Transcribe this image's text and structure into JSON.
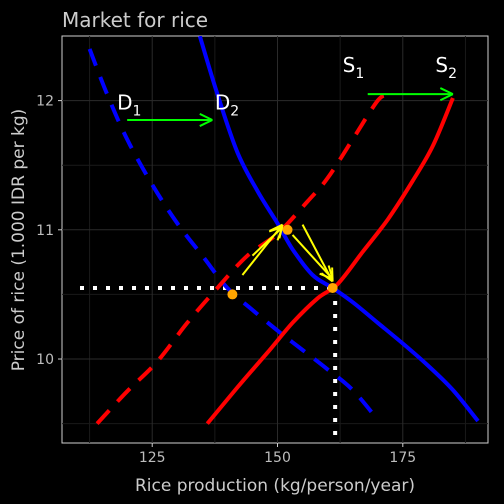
{
  "chart_data": {
    "type": "line",
    "title": "Market for rice",
    "xlabel": "Rice production (kg/person/year)",
    "ylabel": "Price of rice (1.000 IDR per kg)",
    "xlim": [
      107,
      192
    ],
    "ylim": [
      9.35,
      12.5
    ],
    "xticks": [
      125,
      150,
      175
    ],
    "yticks": [
      10,
      11,
      12
    ],
    "grid": true,
    "series": [
      {
        "name": "D1",
        "label_main": "D",
        "label_sub": "1",
        "color": "#0000ff",
        "dash": true,
        "label_at": [
          118,
          11.93
        ],
        "points": [
          [
            112.5,
            12.4
          ],
          [
            116,
            12.05
          ],
          [
            120,
            11.7
          ],
          [
            125,
            11.35
          ],
          [
            130,
            11.05
          ],
          [
            135,
            10.8
          ],
          [
            140,
            10.55
          ],
          [
            145,
            10.38
          ],
          [
            150,
            10.22
          ],
          [
            155,
            10.07
          ],
          [
            160,
            9.92
          ],
          [
            165,
            9.76
          ],
          [
            170,
            9.53
          ]
        ]
      },
      {
        "name": "D2",
        "label_main": "D",
        "label_sub": "2",
        "color": "#0000ff",
        "dash": false,
        "label_at": [
          137.5,
          11.93
        ],
        "points": [
          [
            134.5,
            12.5
          ],
          [
            138,
            12.05
          ],
          [
            142,
            11.6
          ],
          [
            146,
            11.3
          ],
          [
            150,
            11.05
          ],
          [
            153,
            10.85
          ],
          [
            157,
            10.65
          ],
          [
            161,
            10.55
          ],
          [
            165,
            10.44
          ],
          [
            170,
            10.28
          ],
          [
            175,
            10.12
          ],
          [
            180,
            9.95
          ],
          [
            185,
            9.76
          ],
          [
            190,
            9.52
          ]
        ]
      },
      {
        "name": "S1",
        "label_main": "S",
        "label_sub": "1",
        "color": "#ff0000",
        "dash": true,
        "label_at": [
          163,
          12.22
        ],
        "points": [
          [
            114,
            9.5
          ],
          [
            120,
            9.75
          ],
          [
            126,
            9.98
          ],
          [
            132,
            10.28
          ],
          [
            138,
            10.55
          ],
          [
            144,
            10.8
          ],
          [
            150,
            10.97
          ],
          [
            156,
            11.22
          ],
          [
            160,
            11.4
          ],
          [
            165,
            11.7
          ],
          [
            170,
            12.0
          ],
          [
            172,
            12.04
          ]
        ]
      },
      {
        "name": "S2",
        "label_main": "S",
        "label_sub": "2",
        "color": "#ff0000",
        "dash": false,
        "label_at": [
          181.5,
          12.22
        ],
        "points": [
          [
            136,
            9.5
          ],
          [
            142,
            9.78
          ],
          [
            148,
            10.05
          ],
          [
            153,
            10.28
          ],
          [
            158,
            10.47
          ],
          [
            162,
            10.58
          ],
          [
            167,
            10.83
          ],
          [
            172,
            11.08
          ],
          [
            177,
            11.38
          ],
          [
            181,
            11.65
          ],
          [
            185,
            12.02
          ]
        ]
      }
    ],
    "equilibria": [
      {
        "x": 141,
        "y": 10.5,
        "color": "#ffa500"
      },
      {
        "x": 152,
        "y": 11.0,
        "color": "#ffa500"
      },
      {
        "x": 161,
        "y": 10.55,
        "color": "#ffa500"
      }
    ],
    "dotted_guides": {
      "color": "#ffffff",
      "x": 161.5,
      "y": 10.55
    },
    "shift_arrows": [
      {
        "color": "#00ff00",
        "from": [
          120,
          11.85
        ],
        "to": [
          137,
          11.85
        ]
      },
      {
        "color": "#00ff00",
        "from": [
          168,
          12.05
        ],
        "to": [
          185,
          12.05
        ]
      },
      {
        "color": "#ffff00",
        "from": [
          143,
          10.65
        ],
        "to": [
          151,
          11.04
        ]
      },
      {
        "color": "#ffff00",
        "from": [
          145,
          10.8
        ],
        "to": [
          151,
          11.02
        ]
      },
      {
        "color": "#ffff00",
        "from": [
          153,
          10.96
        ],
        "to": [
          161,
          10.62
        ]
      },
      {
        "color": "#ffff00",
        "from": [
          155,
          11.04
        ],
        "to": [
          161,
          10.6
        ]
      }
    ]
  }
}
